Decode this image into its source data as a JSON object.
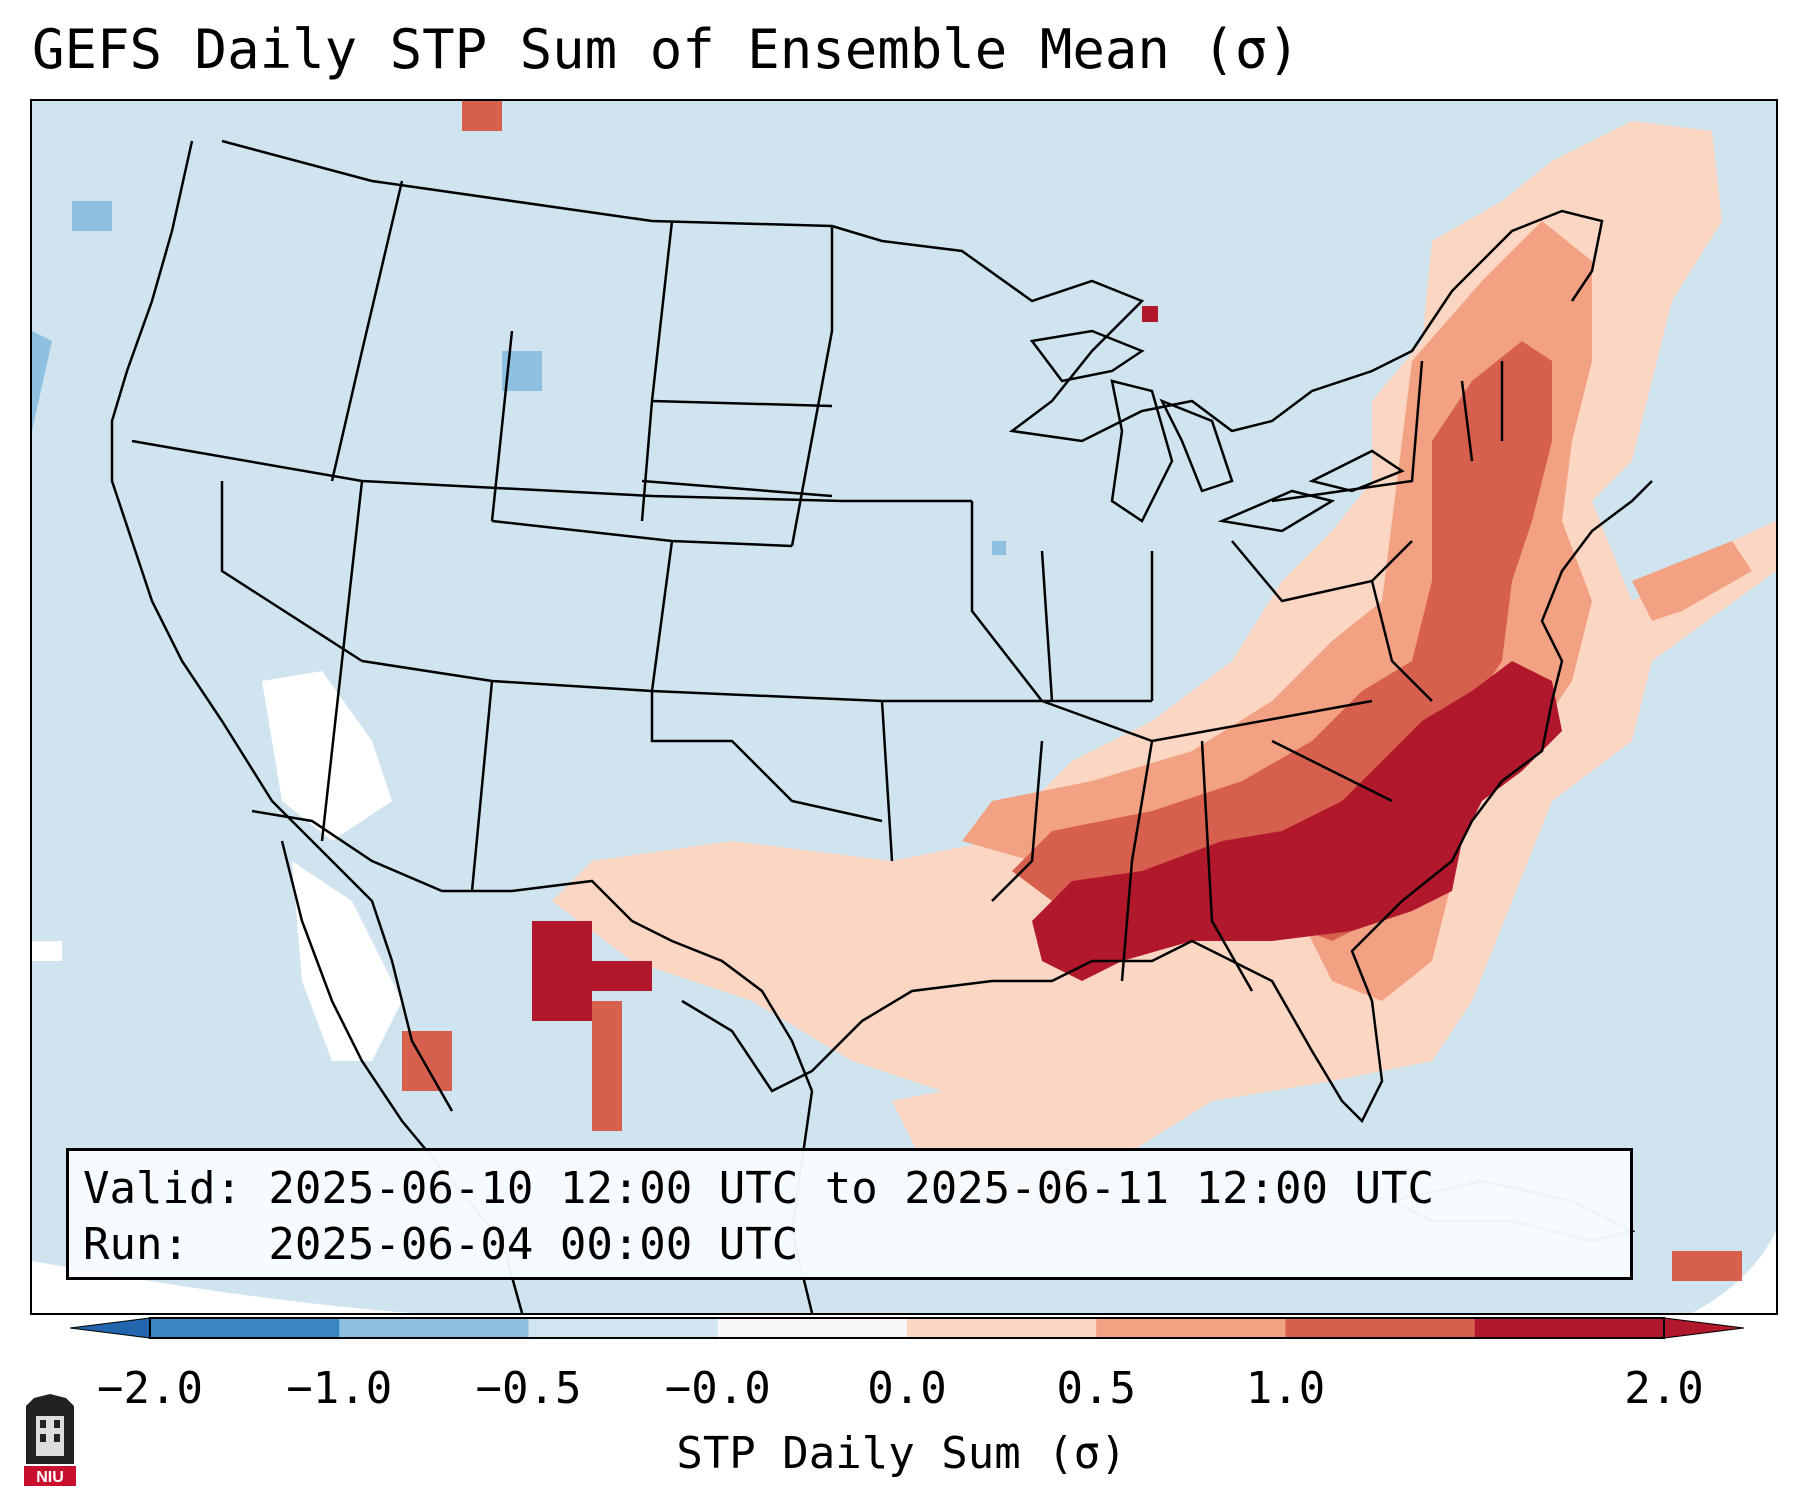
{
  "title": "GEFS Daily STP Sum of Ensemble Mean (σ)",
  "info": {
    "valid_line": "Valid: 2025-06-10 12:00 UTC to 2025-06-11 12:00 UTC",
    "run_line": "Run:   2025-06-04 00:00 UTC"
  },
  "colorbar": {
    "label": "STP Daily Sum (σ)",
    "ticks": [
      "−2.0",
      "−1.0",
      "−0.5",
      "−0.0",
      "0.0",
      "0.5",
      "1.0",
      "2.0"
    ],
    "colors": [
      "#3a86c0",
      "#8ec0e0",
      "#d1e5f0",
      "#f7f7f7",
      "#fbd6c3",
      "#f2a283",
      "#d6604d",
      "#b2182b"
    ],
    "extend_low": "#2166ac",
    "extend_high": "#b2182b"
  },
  "map": {
    "ocean_color": "#d0e4ef",
    "land_color": "#d0e4ef",
    "border_color": "#000000"
  },
  "logo": {
    "text": "NIU"
  }
}
